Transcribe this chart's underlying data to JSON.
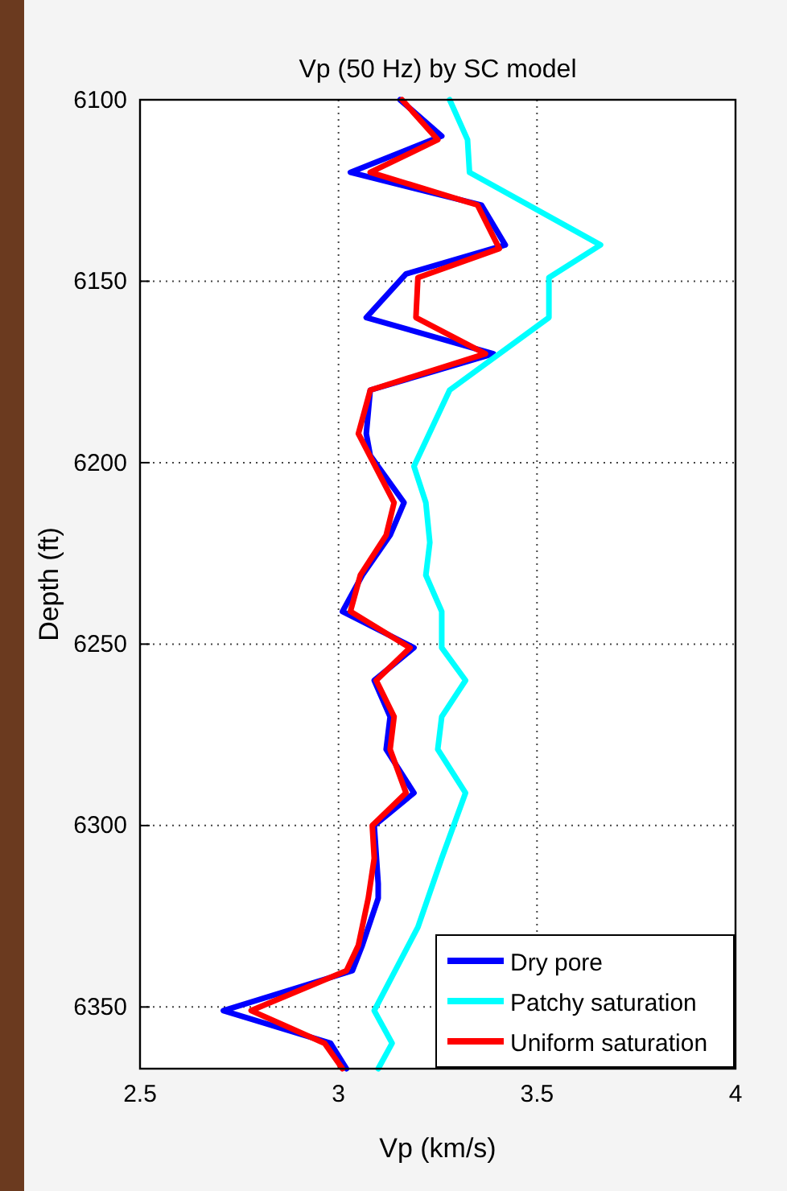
{
  "chart_data": {
    "type": "line",
    "title": "Vp (50 Hz) by SC model",
    "xlabel": "Vp (km/s)",
    "ylabel": "Depth (ft)",
    "xlim": [
      2.5,
      4
    ],
    "xticks": [
      2.5,
      3,
      3.5,
      4
    ],
    "ylim": [
      6367,
      6100
    ],
    "yticks": [
      6100,
      6150,
      6200,
      6250,
      6300,
      6350
    ],
    "grid": true,
    "legend": "bottom right",
    "line_style": "solid",
    "marker": "none",
    "series": [
      {
        "name": "Dry pore",
        "color": "#0000ff",
        "x": [
          3.155,
          3.26,
          3.03,
          3.36,
          3.42,
          3.17,
          3.07,
          3.39,
          3.08,
          3.07,
          3.08,
          3.165,
          3.13,
          3.06,
          3.01,
          3.19,
          3.09,
          3.13,
          3.12,
          3.19,
          3.09,
          3.1,
          3.1,
          3.06,
          3.035,
          2.71,
          2.98,
          3.02
        ],
        "values": [
          6100,
          6110,
          6120,
          6129,
          6140,
          6148,
          6160,
          6170,
          6180,
          6192,
          6198,
          6211,
          6220,
          6231,
          6241,
          6251,
          6260,
          6270,
          6279,
          6291,
          6300,
          6316,
          6320,
          6333,
          6340,
          6351,
          6360,
          6367
        ]
      },
      {
        "name": "Patchy saturation",
        "color": "#00ffff",
        "x": [
          3.28,
          3.325,
          3.33,
          3.66,
          3.53,
          3.53,
          3.28,
          3.19,
          3.22,
          3.23,
          3.22,
          3.26,
          3.26,
          3.32,
          3.26,
          3.25,
          3.32,
          3.26,
          3.2,
          3.09,
          3.135,
          3.1
        ],
        "values": [
          6100,
          6111,
          6120,
          6140,
          6149,
          6160,
          6180,
          6201,
          6211,
          6222,
          6231,
          6241,
          6251,
          6260,
          6270,
          6279,
          6291,
          6309,
          6328,
          6351,
          6360,
          6367
        ]
      },
      {
        "name": "Uniform saturation",
        "color": "#ff0000",
        "x": [
          3.16,
          3.25,
          3.08,
          3.35,
          3.405,
          3.2,
          3.195,
          3.37,
          3.08,
          3.05,
          3.14,
          3.12,
          3.055,
          3.03,
          3.18,
          3.095,
          3.14,
          3.13,
          3.17,
          3.085,
          3.09,
          3.075,
          3.05,
          3.02,
          2.78,
          2.965,
          3.01
        ],
        "values": [
          6100,
          6111,
          6120,
          6129,
          6141,
          6149,
          6160,
          6170,
          6180,
          6192,
          6211,
          6220,
          6231,
          6241,
          6251,
          6260,
          6270,
          6279,
          6291,
          6300,
          6309,
          6320,
          6333,
          6340,
          6351,
          6360,
          6367
        ]
      }
    ]
  }
}
